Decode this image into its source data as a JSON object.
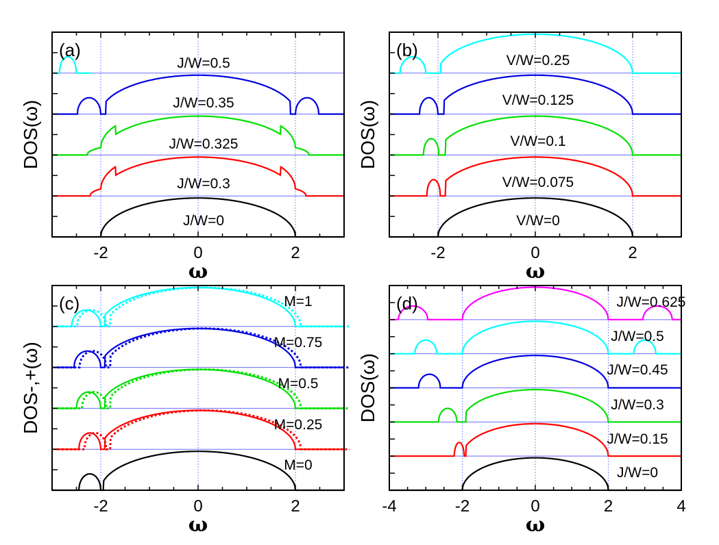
{
  "chart_data": [
    {
      "panel": "(a)",
      "type": "line",
      "xlabel": "ω",
      "ylabel": "DOS(ω)",
      "xlim": [
        -3,
        3
      ],
      "xticks": [
        -2,
        0,
        2
      ],
      "series": [
        {
          "name": "J/W=0",
          "color": "#000000",
          "kind": "bare"
        },
        {
          "name": "J/W=0.3",
          "color": "#ff0000",
          "kind": "shoulder",
          "outer": 2.22
        },
        {
          "name": "J/W=0.325",
          "color": "#00e000",
          "kind": "shoulder",
          "outer": 2.28
        },
        {
          "name": "J/W=0.35",
          "color": "#0000e0",
          "kind": "split",
          "outer": 2.48,
          "gap_in": 1.9,
          "gap_out": 2.0
        },
        {
          "name": "J/W=0.5",
          "color": "#00ffff",
          "kind": "split",
          "outer": 2.85,
          "gap_in": 2.2,
          "gap_out": 2.5
        }
      ]
    },
    {
      "panel": "(b)",
      "type": "line",
      "xlabel": "ω",
      "ylabel": "DOS(ω)",
      "xlim": [
        -3,
        3
      ],
      "xticks": [
        -2,
        0,
        2
      ],
      "series": [
        {
          "name": "V/W=0",
          "color": "#000000",
          "kind": "bare"
        },
        {
          "name": "V/W=0.075",
          "color": "#ff0000",
          "kind": "left",
          "outer": 2.23,
          "gap_in": 1.85,
          "gap_out": 1.95
        },
        {
          "name": "V/W=0.1",
          "color": "#00e000",
          "kind": "left",
          "outer": 2.3,
          "gap_in": 1.85,
          "gap_out": 1.98
        },
        {
          "name": "V/W=0.125",
          "color": "#0000e0",
          "kind": "left",
          "outer": 2.38,
          "gap_in": 1.88,
          "gap_out": 2.0
        },
        {
          "name": "V/W=0.25",
          "color": "#00ffff",
          "kind": "left",
          "outer": 2.78,
          "gap_in": 1.95,
          "gap_out": 2.25
        }
      ]
    },
    {
      "panel": "(c)",
      "type": "line",
      "xlabel": "ω",
      "ylabel": "DOS-,+(ω)",
      "xlim": [
        -3,
        3
      ],
      "xticks": [
        -2,
        0,
        2
      ],
      "series": [
        {
          "name": "M=0",
          "color": "#000000",
          "kind": "left",
          "outer": 2.45,
          "gap_in": 1.95,
          "gap_out": 2.0
        },
        {
          "name": "M=0.25",
          "color": "#ff0000",
          "kind": "left",
          "outer": 2.45,
          "gap_in": 1.92,
          "gap_out": 2.0
        },
        {
          "name": "M=0.5",
          "color": "#00e000",
          "kind": "left",
          "outer": 2.5,
          "gap_in": 1.92,
          "gap_out": 2.0
        },
        {
          "name": "M=0.75",
          "color": "#0000e0",
          "kind": "left",
          "outer": 2.55,
          "gap_in": 1.92,
          "gap_out": 2.0
        },
        {
          "name": "M=1",
          "color": "#00ffff",
          "kind": "left",
          "outer": 2.6,
          "gap_in": 1.92,
          "gap_out": 2.0
        }
      ]
    },
    {
      "panel": "(d)",
      "type": "line",
      "xlabel": "ω",
      "ylabel": "DOS(ω)",
      "xlim": [
        -4,
        4
      ],
      "xticks": [
        -4,
        -2,
        0,
        2,
        4
      ],
      "series": [
        {
          "name": "J/W=0",
          "color": "#000000",
          "kind": "bare"
        },
        {
          "name": "J/W=0.15",
          "color": "#ff0000",
          "kind": "left",
          "outer": 2.22,
          "gap_in": 1.9,
          "gap_out": 1.95
        },
        {
          "name": "J/W=0.3",
          "color": "#00e000",
          "kind": "left",
          "outer": 2.65,
          "gap_in": 1.9,
          "gap_out": 2.15
        },
        {
          "name": "J/W=0.45",
          "color": "#0000e0",
          "kind": "left",
          "outer": 3.2,
          "gap_in": 2.0,
          "gap_out": 2.6
        },
        {
          "name": "J/W=0.5",
          "color": "#00ffff",
          "kind": "split",
          "outer": 3.3,
          "gap_in": 2.0,
          "gap_out": 2.7
        },
        {
          "name": "J/W=0.625",
          "color": "#ff00ff",
          "kind": "split",
          "outer": 3.75,
          "gap_in": 2.0,
          "gap_out": 2.95
        }
      ]
    }
  ]
}
